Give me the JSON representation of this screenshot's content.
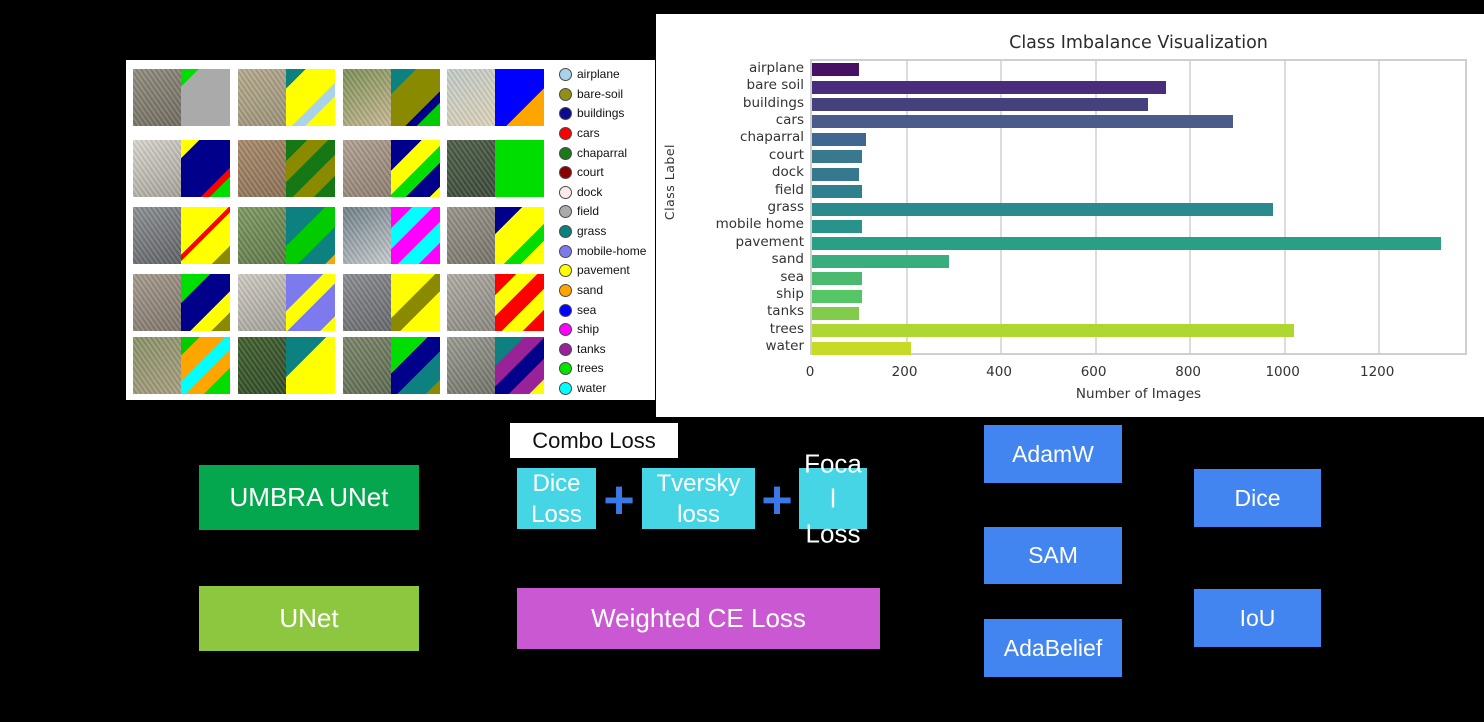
{
  "colors": {
    "page_bg": "#000000",
    "panel_bg": "#ffffff",
    "umbra_unet": "#04a64e",
    "unet": "#8dc63f",
    "loss_box": "#45d5e5",
    "plus": "#3b78e7",
    "weighted_ce": "#c958d2",
    "optimizer": "#4285f0",
    "metric": "#4285f0"
  },
  "samples": {
    "legend": [
      {
        "label": "airplane",
        "color": "#a8d3ea"
      },
      {
        "label": "bare-soil",
        "color": "#8f8f1a"
      },
      {
        "label": "buildings",
        "color": "#0b0b8f"
      },
      {
        "label": "cars",
        "color": "#fb0000"
      },
      {
        "label": "chaparral",
        "color": "#1a7a1a"
      },
      {
        "label": "court",
        "color": "#8b0000"
      },
      {
        "label": "dock",
        "color": "#fce8ea"
      },
      {
        "label": "field",
        "color": "#ababab"
      },
      {
        "label": "grass",
        "color": "#0d8080"
      },
      {
        "label": "mobile-home",
        "color": "#7d7aee"
      },
      {
        "label": "pavement",
        "color": "#ffff00"
      },
      {
        "label": "sand",
        "color": "#ffa500"
      },
      {
        "label": "sea",
        "color": "#0000ff"
      },
      {
        "label": "ship",
        "color": "#ff00ff"
      },
      {
        "label": "tanks",
        "color": "#992299"
      },
      {
        "label": "trees",
        "color": "#00e400"
      },
      {
        "label": "water",
        "color": "#00ffff"
      }
    ],
    "cells": [
      {
        "photo": [
          "#918c7e",
          "#6f6b5f"
        ],
        "mask": [
          [
            "#00dd00",
            1
          ],
          [
            "#aaaaaa",
            5
          ]
        ]
      },
      {
        "photo": [
          "#b5aa8c",
          "#9c927a"
        ],
        "mask": [
          [
            "#0d8080",
            1.2
          ],
          [
            "#ffff00",
            2.6
          ],
          [
            "#a8d3ea",
            0.8
          ],
          [
            "#ffff00",
            1.8
          ]
        ]
      },
      {
        "photo": [
          "#7b9054",
          "#c9b894"
        ],
        "mask": [
          [
            "#0d8080",
            1.3
          ],
          [
            "#8a8a00",
            2.4
          ],
          [
            "#00008b",
            0.6
          ],
          [
            "#00cc00",
            1.2
          ]
        ]
      },
      {
        "photo": [
          "#c2cbc9",
          "#ded3b8"
        ],
        "mask": [
          [
            "#0000ff",
            3.6
          ],
          [
            "#ffa500",
            2
          ]
        ]
      },
      {
        "photo": [
          "#d9d6ce",
          "#a5a29a"
        ],
        "mask": [
          [
            "#ffff00",
            1
          ],
          [
            "#00008b",
            3.2
          ],
          [
            "#ff0000",
            0.5
          ],
          [
            "#00dd00",
            1.1
          ]
        ]
      },
      {
        "photo": [
          "#a98a6b",
          "#8a7055"
        ],
        "mask": [
          [
            "#157815",
            1
          ],
          [
            "#8a8a00",
            1
          ],
          [
            "#157815",
            1
          ],
          [
            "#8a8a00",
            1
          ],
          [
            "#157815",
            1
          ]
        ]
      },
      {
        "photo": [
          "#b2a292",
          "#8c7e6e"
        ],
        "mask": [
          [
            "#00008b",
            1.8
          ],
          [
            "#ffff00",
            1.4
          ],
          [
            "#00dd00",
            1
          ],
          [
            "#00008b",
            1.4
          ],
          [
            "#ffff00",
            0.6
          ]
        ]
      },
      {
        "photo": [
          "#4e5e46",
          "#3a493b"
        ],
        "mask": [
          [
            "#00dd00",
            1
          ]
        ]
      },
      {
        "photo": [
          "#8d9094",
          "#5e6165"
        ],
        "mask": [
          [
            "#ffff00",
            2.6
          ],
          [
            "#ff0000",
            0.35
          ],
          [
            "#ffff00",
            1.8
          ],
          [
            "#8a8a00",
            1
          ]
        ]
      },
      {
        "photo": [
          "#7f9962",
          "#5d7847"
        ],
        "mask": [
          [
            "#0d8080",
            2
          ],
          [
            "#00cc00",
            1.5
          ],
          [
            "#0d8080",
            1.4
          ],
          [
            "#ffa500",
            0.5
          ]
        ]
      },
      {
        "photo": [
          "#6f7f87",
          "#c8cdd1"
        ],
        "mask": [
          [
            "#ff00ff",
            1
          ],
          [
            "#00ffff",
            1
          ],
          [
            "#ff00ff",
            1
          ],
          [
            "#00ffff",
            1
          ],
          [
            "#ff00ff",
            1
          ]
        ]
      },
      {
        "photo": [
          "#9b958b",
          "#767268"
        ],
        "mask": [
          [
            "#00008b",
            1.4
          ],
          [
            "#ffff00",
            2
          ],
          [
            "#00dd00",
            0.9
          ],
          [
            "#ffff00",
            1.2
          ]
        ]
      },
      {
        "photo": [
          "#a69b8d",
          "#7e746a"
        ],
        "mask": [
          [
            "#00dd00",
            1.4
          ],
          [
            "#00008b",
            1.8
          ],
          [
            "#ffff00",
            1
          ],
          [
            "#8a8a00",
            0.9
          ]
        ]
      },
      {
        "photo": [
          "#d0ccc4",
          "#a29e97"
        ],
        "mask": [
          [
            "#7d7aee",
            1.8
          ],
          [
            "#ffff00",
            1
          ],
          [
            "#7d7aee",
            1.6
          ],
          [
            "#ffff00",
            0.7
          ]
        ]
      },
      {
        "photo": [
          "#8b8d91",
          "#65676b"
        ],
        "mask": [
          [
            "#ffff00",
            2
          ],
          [
            "#8a8a00",
            1
          ],
          [
            "#ffff00",
            1.8
          ]
        ]
      },
      {
        "photo": [
          "#b1ada5",
          "#8a867f"
        ],
        "mask": [
          [
            "#ff0000",
            1
          ],
          [
            "#ffff00",
            1
          ],
          [
            "#ff0000",
            1
          ],
          [
            "#ffff00",
            1
          ],
          [
            "#ff0000",
            1
          ]
        ]
      },
      {
        "photo": [
          "#8a9268",
          "#a89e80"
        ],
        "mask": [
          [
            "#00cc00",
            1
          ],
          [
            "#ffa500",
            1.4
          ],
          [
            "#00ffff",
            0.9
          ],
          [
            "#ffa500",
            1
          ],
          [
            "#00dd00",
            1.4
          ]
        ]
      },
      {
        "photo": [
          "#42602f",
          "#2f4a26"
        ],
        "mask": [
          [
            "#0d8080",
            1.6
          ],
          [
            "#ffff00",
            2.6
          ]
        ]
      },
      {
        "photo": [
          "#7b8569",
          "#5d6951"
        ],
        "mask": [
          [
            "#00dd00",
            1.8
          ],
          [
            "#00008b",
            1.3
          ],
          [
            "#0d8080",
            1.4
          ],
          [
            "#8a8a00",
            0.7
          ]
        ]
      },
      {
        "photo": [
          "#9b9b91",
          "#707369"
        ],
        "mask": [
          [
            "#0d8080",
            1.4
          ],
          [
            "#992299",
            1
          ],
          [
            "#00008b",
            1
          ],
          [
            "#992299",
            1
          ],
          [
            "#ffff00",
            0.7
          ]
        ]
      }
    ]
  },
  "chart_data": {
    "type": "bar",
    "orientation": "horizontal",
    "title": "Class Imbalance Visualization",
    "xlabel": "Number of Images",
    "ylabel": "Class Label",
    "categories": [
      "airplane",
      "bare soil",
      "buildings",
      "cars",
      "chaparral",
      "court",
      "dock",
      "field",
      "grass",
      "mobile home",
      "pavement",
      "sand",
      "sea",
      "ship",
      "tanks",
      "trees",
      "water"
    ],
    "values": [
      100,
      750,
      710,
      890,
      115,
      105,
      100,
      105,
      975,
      105,
      1330,
      290,
      105,
      105,
      100,
      1020,
      210
    ],
    "colors": [
      "#471264",
      "#472d7b",
      "#45417d",
      "#4c5c8a",
      "#3f678f",
      "#3a788e",
      "#36798e",
      "#2f808e",
      "#2a8a8d",
      "#28928b",
      "#29a085",
      "#38ad7d",
      "#4cba6e",
      "#56c566",
      "#82cb4c",
      "#aed732",
      "#c7db26"
    ],
    "palette": "viridis",
    "xticks": [
      0,
      200,
      400,
      600,
      800,
      1000,
      1200
    ],
    "xlim": [
      0,
      1390
    ],
    "grid": true,
    "legend_position": "none"
  },
  "blocks": {
    "models": [
      {
        "label": "UMBRA UNet"
      },
      {
        "label": "UNet"
      }
    ],
    "combo": {
      "header": "Combo Loss",
      "plus": "+",
      "boxes": [
        {
          "label": "Dice Loss",
          "lines": [
            "Dice",
            "Loss"
          ]
        },
        {
          "label": "Tversky loss",
          "lines": [
            "Tversky",
            "loss"
          ]
        },
        {
          "label": "Focal Loss",
          "lines": [
            "Foca",
            "l",
            "Loss"
          ]
        }
      ]
    },
    "weighted_ce": {
      "label": "Weighted CE Loss"
    },
    "optimizers": [
      {
        "label": "AdamW"
      },
      {
        "label": "SAM"
      },
      {
        "label": "AdaBelief"
      }
    ],
    "metrics": [
      {
        "label": "Dice"
      },
      {
        "label": "IoU"
      }
    ]
  }
}
